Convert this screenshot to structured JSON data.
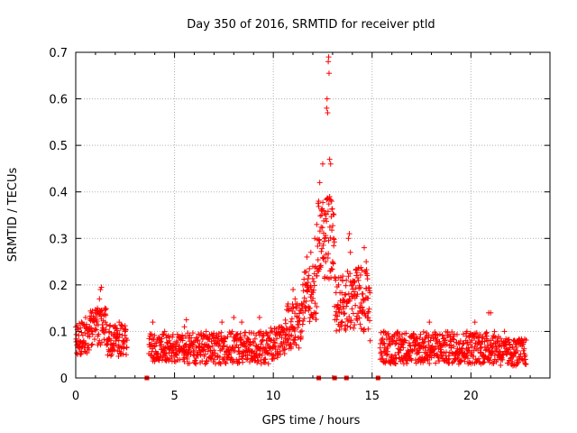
{
  "chart_data": {
    "type": "scatter",
    "title": "Day 350 of 2016, SRMTID for receiver ptld",
    "xlabel": "GPS time / hours",
    "ylabel": "SRMTID / TECUs",
    "xlim": [
      0,
      24
    ],
    "ylim": [
      0,
      0.7
    ],
    "x_ticks": [
      0,
      5,
      10,
      15,
      20
    ],
    "y_ticks": [
      0,
      0.1,
      0.2,
      0.3,
      0.4,
      0.5,
      0.6,
      0.7
    ],
    "x_tick_labels": [
      "0",
      "5",
      "10",
      "15",
      "20"
    ],
    "y_tick_labels": [
      "0",
      "0.1",
      "0.2",
      "0.3",
      "0.4",
      "0.5",
      "0.6",
      "0.7"
    ],
    "grid": true,
    "series": [
      {
        "name": "SRMTID",
        "color": "#ff0000",
        "marker": "plus",
        "segments": [
          {
            "start": 0.0,
            "end": 0.7,
            "baseline": 0.085,
            "spread": 0.035
          },
          {
            "start": 0.7,
            "end": 1.6,
            "baseline": 0.11,
            "spread": 0.04
          },
          {
            "start": 1.6,
            "end": 2.6,
            "baseline": 0.08,
            "spread": 0.035
          },
          {
            "start": 3.7,
            "end": 5.5,
            "baseline": 0.065,
            "spread": 0.03
          },
          {
            "start": 5.5,
            "end": 9.8,
            "baseline": 0.065,
            "spread": 0.035
          },
          {
            "start": 9.8,
            "end": 10.6,
            "baseline": 0.075,
            "spread": 0.035
          },
          {
            "start": 10.6,
            "end": 11.5,
            "baseline": 0.11,
            "spread": 0.05
          },
          {
            "start": 11.5,
            "end": 12.2,
            "baseline": 0.18,
            "spread": 0.06
          },
          {
            "start": 12.2,
            "end": 13.1,
            "baseline": 0.3,
            "spread": 0.09
          },
          {
            "start": 13.1,
            "end": 13.7,
            "baseline": 0.16,
            "spread": 0.06
          },
          {
            "start": 13.7,
            "end": 14.9,
            "baseline": 0.17,
            "spread": 0.07
          },
          {
            "start": 15.4,
            "end": 19.5,
            "baseline": 0.065,
            "spread": 0.035
          },
          {
            "start": 19.5,
            "end": 21.5,
            "baseline": 0.065,
            "spread": 0.035
          },
          {
            "start": 21.5,
            "end": 22.8,
            "baseline": 0.055,
            "spread": 0.03
          }
        ],
        "points": [
          [
            0.1,
            0.08
          ],
          [
            0.3,
            0.12
          ],
          [
            0.5,
            0.13
          ],
          [
            0.8,
            0.14
          ],
          [
            1.1,
            0.15
          ],
          [
            1.2,
            0.17
          ],
          [
            1.25,
            0.19
          ],
          [
            1.3,
            0.195
          ],
          [
            1.5,
            0.12
          ],
          [
            1.7,
            0.1
          ],
          [
            2.0,
            0.09
          ],
          [
            2.2,
            0.12
          ],
          [
            2.5,
            0.1
          ],
          [
            3.9,
            0.12
          ],
          [
            4.5,
            0.1
          ],
          [
            5.5,
            0.11
          ],
          [
            5.6,
            0.125
          ],
          [
            6.6,
            0.1
          ],
          [
            7.4,
            0.12
          ],
          [
            8.0,
            0.13
          ],
          [
            8.4,
            0.12
          ],
          [
            9.3,
            0.13
          ],
          [
            10.4,
            0.11
          ],
          [
            10.9,
            0.15
          ],
          [
            11.0,
            0.19
          ],
          [
            11.1,
            0.17
          ],
          [
            11.5,
            0.14
          ],
          [
            11.6,
            0.2
          ],
          [
            11.7,
            0.26
          ],
          [
            11.8,
            0.22
          ],
          [
            11.9,
            0.27
          ],
          [
            12.0,
            0.24
          ],
          [
            12.1,
            0.3
          ],
          [
            12.2,
            0.33
          ],
          [
            12.3,
            0.38
          ],
          [
            12.35,
            0.42
          ],
          [
            12.45,
            0.35
          ],
          [
            12.5,
            0.46
          ],
          [
            12.55,
            0.36
          ],
          [
            12.6,
            0.3
          ],
          [
            12.65,
            0.25
          ],
          [
            12.7,
            0.58
          ],
          [
            12.72,
            0.6
          ],
          [
            12.75,
            0.57
          ],
          [
            12.78,
            0.68
          ],
          [
            12.8,
            0.69
          ],
          [
            12.82,
            0.655
          ],
          [
            12.85,
            0.47
          ],
          [
            12.9,
            0.46
          ],
          [
            12.95,
            0.38
          ],
          [
            13.0,
            0.25
          ],
          [
            13.05,
            0.3
          ],
          [
            13.3,
            0.2
          ],
          [
            13.5,
            0.21
          ],
          [
            13.8,
            0.3
          ],
          [
            13.85,
            0.31
          ],
          [
            13.9,
            0.27
          ],
          [
            14.0,
            0.2
          ],
          [
            14.1,
            0.18
          ],
          [
            14.2,
            0.22
          ],
          [
            14.4,
            0.15
          ],
          [
            14.6,
            0.28
          ],
          [
            14.7,
            0.25
          ],
          [
            14.75,
            0.22
          ],
          [
            14.8,
            0.13
          ],
          [
            14.9,
            0.08
          ],
          [
            15.6,
            0.1
          ],
          [
            17.9,
            0.12
          ],
          [
            19.8,
            0.1
          ],
          [
            20.2,
            0.12
          ],
          [
            20.9,
            0.14
          ],
          [
            21.0,
            0.14
          ],
          [
            21.7,
            0.1
          ],
          [
            22.4,
            0.08
          ]
        ],
        "zero_points": [
          3.6,
          12.3,
          13.1,
          13.7,
          15.3
        ]
      }
    ]
  }
}
